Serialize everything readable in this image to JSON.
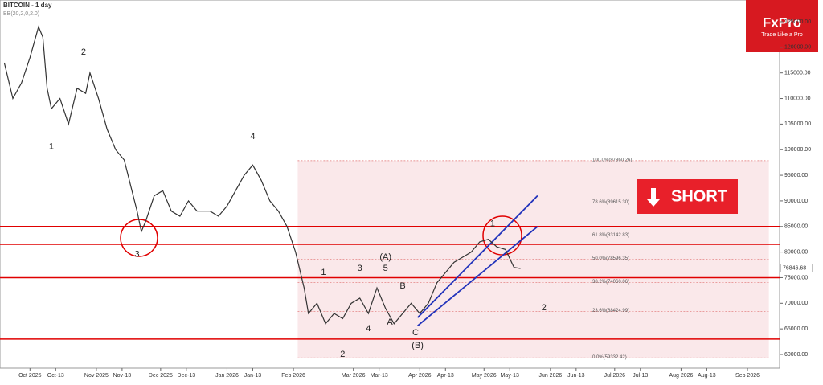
{
  "chart_data": {
    "type": "line",
    "title": "BITCOIN - 1 day",
    "subtitle": "BB(20,2,0,2.0)",
    "brand": "FxPro",
    "tagline": "Trade Like a Pro",
    "signal": "SHORT",
    "x": [
      -12,
      -8,
      -4,
      0,
      4,
      6,
      8,
      10,
      14,
      18,
      22,
      26,
      28,
      32,
      36,
      40,
      44,
      50,
      52,
      54,
      58,
      62,
      66,
      70,
      74,
      78,
      84,
      88,
      92,
      96,
      100,
      104,
      108,
      112,
      116,
      120,
      124,
      128,
      130,
      134,
      138,
      142,
      146,
      150,
      154,
      158,
      162,
      166,
      170,
      174,
      178,
      182,
      186,
      190,
      194,
      198,
      202,
      206,
      210,
      214,
      218,
      222,
      226,
      229
    ],
    "series": [
      {
        "name": "BITCOIN",
        "color": "#333333",
        "values": [
          117000,
          110000,
          113000,
          118000,
          124000,
          122000,
          112000,
          108000,
          110000,
          105000,
          112000,
          111000,
          115000,
          110000,
          104000,
          100000,
          98000,
          88000,
          84000,
          86000,
          91000,
          92000,
          88000,
          87000,
          90000,
          88000,
          88000,
          87000,
          89000,
          92000,
          95000,
          97000,
          94000,
          90000,
          88000,
          85000,
          80000,
          73000,
          68000,
          70000,
          66000,
          68000,
          67000,
          70000,
          71000,
          68000,
          73000,
          69000,
          66000,
          68000,
          70000,
          68000,
          70000,
          74000,
          76000,
          78000,
          79000,
          80000,
          82000,
          82500,
          81000,
          80500,
          77000,
          76800
        ]
      }
    ],
    "xlim": [
      -14,
      350
    ],
    "ylim": [
      57330,
      129240
    ],
    "xticks": [
      {
        "value": 0,
        "label": "Oct 2025"
      },
      {
        "value": 12,
        "label": "Oct-13"
      },
      {
        "value": 31,
        "label": "Nov 2025"
      },
      {
        "value": 43,
        "label": "Nov-13"
      },
      {
        "value": 61,
        "label": "Dec 2025"
      },
      {
        "value": 73,
        "label": "Dec-13"
      },
      {
        "value": 92,
        "label": "Jan 2026"
      },
      {
        "value": 104,
        "label": "Jan-13"
      },
      {
        "value": 123,
        "label": "Feb 2026"
      },
      {
        "value": 151,
        "label": "Mar 2026"
      },
      {
        "value": 163,
        "label": "Mar-13"
      },
      {
        "value": 182,
        "label": "Apr 2026"
      },
      {
        "value": 194,
        "label": "Apr-13"
      },
      {
        "value": 212,
        "label": "May 2026"
      },
      {
        "value": 224,
        "label": "May-13"
      },
      {
        "value": 243,
        "label": "Jun 2026"
      },
      {
        "value": 255,
        "label": "Jun-13"
      },
      {
        "value": 273,
        "label": "Jul 2026"
      },
      {
        "value": 285,
        "label": "Jul-13"
      },
      {
        "value": 304,
        "label": "Aug 2026"
      },
      {
        "value": 316,
        "label": "Aug-13"
      },
      {
        "value": 335,
        "label": "Sep 2026"
      }
    ],
    "yticks": [
      {
        "value": 60000,
        "label": "60000.00"
      },
      {
        "value": 65000,
        "label": "65000.00"
      },
      {
        "value": 70000,
        "label": "70000.00"
      },
      {
        "value": 75000,
        "label": "75000.00"
      },
      {
        "value": 80000,
        "label": "80000.00"
      },
      {
        "value": 85000,
        "label": "85000.00"
      },
      {
        "value": 90000,
        "label": "90000.00"
      },
      {
        "value": 95000,
        "label": "95000.00"
      },
      {
        "value": 100000,
        "label": "100000.00"
      },
      {
        "value": 105000,
        "label": "105000.00"
      },
      {
        "value": 110000,
        "label": "110000.00"
      },
      {
        "value": 115000,
        "label": "115000.00"
      },
      {
        "value": 120000,
        "label": "120000.00"
      },
      {
        "value": 125000,
        "label": "125000.00"
      }
    ],
    "last_price": {
      "value": 76846.68,
      "label": "76846.68"
    },
    "levels": [
      85000,
      81500,
      75000,
      63000
    ],
    "fib_box_x": [
      125,
      345
    ],
    "fib_levels": [
      {
        "value": 97860.26,
        "label": "100.0%(97860.26)"
      },
      {
        "value": 89615.3,
        "label": "78.6%(89615.30)"
      },
      {
        "value": 83142.83,
        "label": "61.8%(83142.83)"
      },
      {
        "value": 78596.35,
        "label": "50.0%(78596.35)"
      },
      {
        "value": 74060.06,
        "label": "38.2%(74060.06)"
      },
      {
        "value": 68424.99,
        "label": "23.6%(68424.99)"
      },
      {
        "value": 59332.42,
        "label": "0.0%(59332.42)"
      }
    ],
    "channel": [
      {
        "x": [
          181,
          237
        ],
        "values": [
          67200,
          91000
        ]
      },
      {
        "x": [
          181,
          237
        ],
        "values": [
          65600,
          85000
        ]
      }
    ],
    "annotations": [
      {
        "text": "2",
        "x": 25,
        "y": 119000
      },
      {
        "text": "1",
        "x": 10,
        "y": 100600
      },
      {
        "text": "3",
        "x": 50,
        "y": 79500
      },
      {
        "text": "4",
        "x": 104,
        "y": 102500
      },
      {
        "text": "3",
        "x": 154,
        "y": 76800
      },
      {
        "text": "5",
        "x": 166,
        "y": 76800
      },
      {
        "text": "(A)",
        "x": 166,
        "y": 79000
      },
      {
        "text": "B",
        "x": 174,
        "y": 73300
      },
      {
        "text": "A",
        "x": 168,
        "y": 66300
      },
      {
        "text": "C",
        "x": 180,
        "y": 64200
      },
      {
        "text": "(B)",
        "x": 181,
        "y": 61700
      },
      {
        "text": "4",
        "x": 158,
        "y": 65000
      },
      {
        "text": "2",
        "x": 146,
        "y": 60000
      },
      {
        "text": "1",
        "x": 137,
        "y": 76000
      },
      {
        "text": "2",
        "x": 240,
        "y": 69100
      },
      {
        "text": "1",
        "x": 216,
        "y": 85500
      }
    ]
  }
}
